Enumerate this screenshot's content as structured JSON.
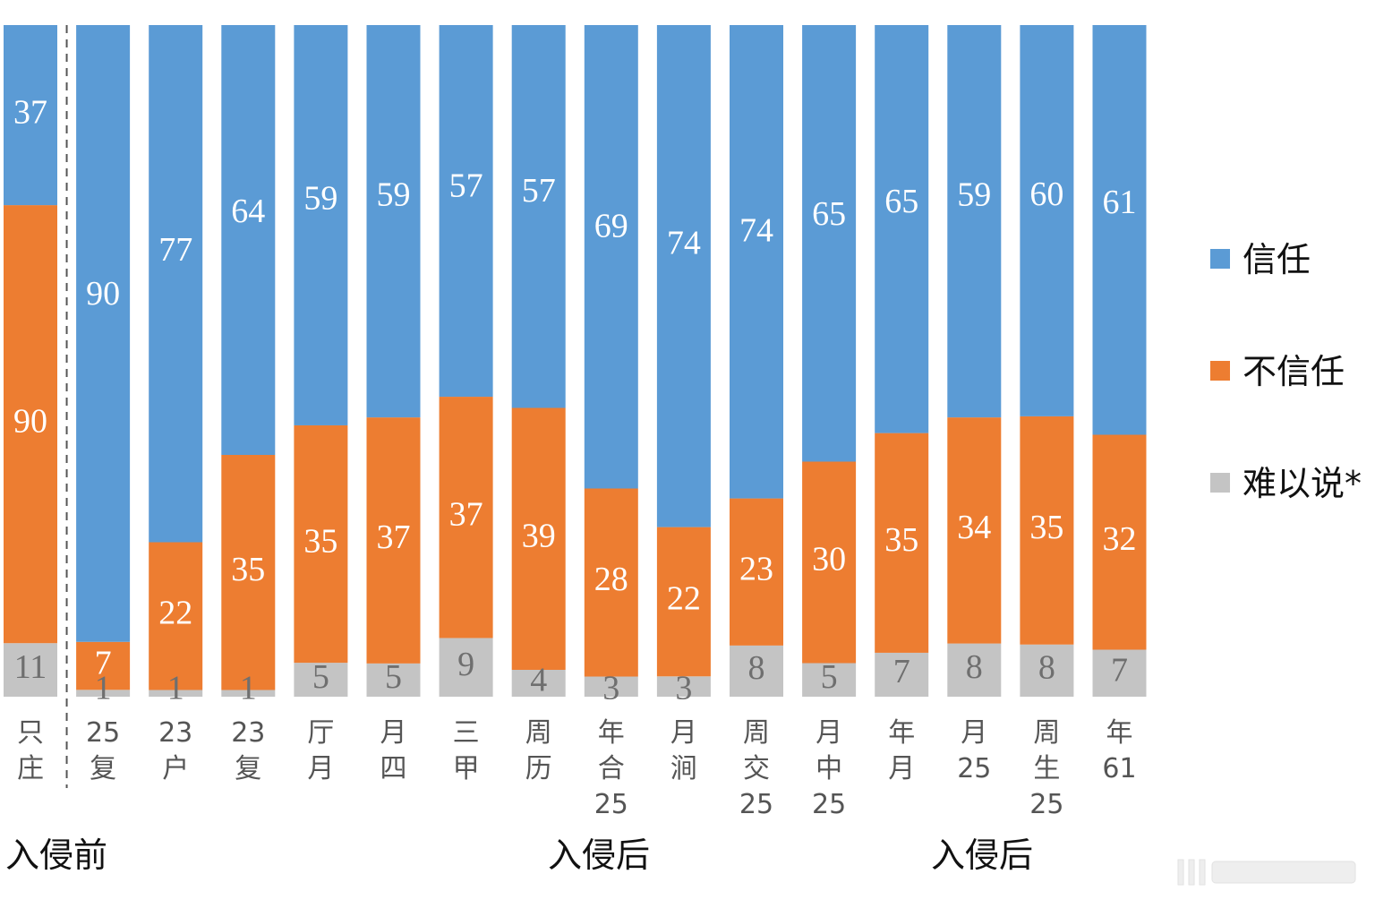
{
  "chart_data": {
    "type": "bar",
    "stacked": true,
    "categories": [
      [
        "只",
        "庄"
      ],
      [
        "25",
        "复"
      ],
      [
        "23",
        "户"
      ],
      [
        "23",
        "复"
      ],
      [
        "厅",
        "月"
      ],
      [
        "月",
        "四"
      ],
      [
        "三",
        "甲"
      ],
      [
        "周",
        "历"
      ],
      [
        "年",
        "合",
        "25"
      ],
      [
        "月",
        "涧"
      ],
      [
        "周",
        "交",
        "25"
      ],
      [
        "月",
        "中",
        "25"
      ],
      [
        "年",
        "月"
      ],
      [
        "月",
        "25"
      ],
      [
        "周",
        "生",
        "25"
      ],
      [
        "年",
        "61"
      ]
    ],
    "series": [
      {
        "name": "信任",
        "color": "#5b9bd5",
        "values": [
          37,
          90,
          77,
          64,
          59,
          59,
          57,
          57,
          69,
          74,
          74,
          65,
          65,
          59,
          60,
          61
        ]
      },
      {
        "name": "不信任",
        "color": "#ed7d31",
        "values": [
          90,
          7,
          22,
          35,
          35,
          37,
          37,
          39,
          28,
          22,
          23,
          30,
          35,
          34,
          35,
          32
        ]
      },
      {
        "name": "难以说*",
        "color": "#c4c4c4",
        "values": [
          11,
          1,
          1,
          1,
          5,
          5,
          9,
          4,
          3,
          3,
          8,
          5,
          7,
          8,
          8,
          7
        ]
      }
    ],
    "group_labels": [
      {
        "text": "入侵前",
        "from": 0,
        "to": 0
      },
      {
        "text": "入侵后",
        "from": 1,
        "to": 11
      },
      {
        "text": "入侵后",
        "from": 12,
        "to": 15
      }
    ],
    "separator_after_index": 0,
    "legend_position": "right",
    "grid": false
  }
}
